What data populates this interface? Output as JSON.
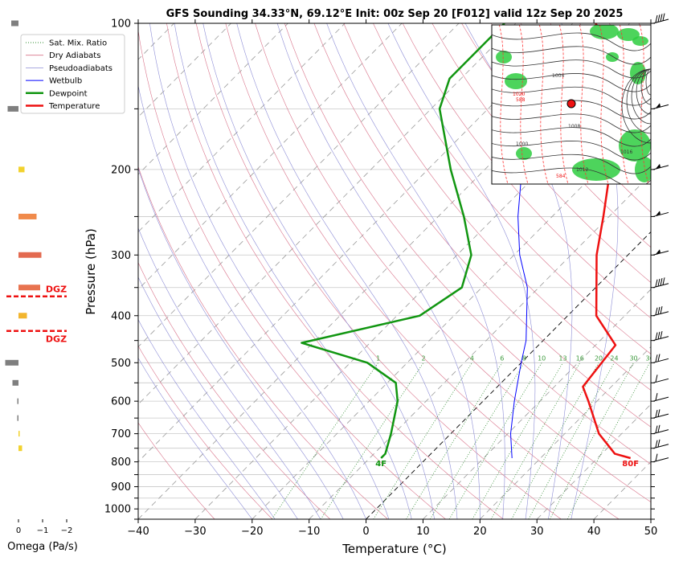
{
  "chart_data": {
    "type": "line",
    "title": "GFS Sounding 34.33°N, 69.12°E Init: 00z Sep 20 [F012] valid 12z Sep 20 2025",
    "xlabel": "Temperature (°C)",
    "ylabel": "Pressure (hPa)",
    "xlim": [
      -40,
      50
    ],
    "ylim": [
      1050,
      100
    ],
    "y_scale": "log",
    "x_ticks": [
      -40,
      -30,
      -20,
      -10,
      0,
      10,
      20,
      30,
      40,
      50
    ],
    "y_tick_labels": [
      100,
      200,
      300,
      400,
      500,
      600,
      700,
      800,
      900,
      1000
    ],
    "skew": true,
    "grid": true,
    "legend_position": "top-left",
    "legend": [
      {
        "label": "Sat. Mix. Ratio",
        "color": "#2e8b2e",
        "style": "dotted",
        "width": 1
      },
      {
        "label": "Dry Adiabats",
        "color": "#d9738a",
        "style": "solid",
        "width": 0.8
      },
      {
        "label": "Pseudoadiabats",
        "color": "#8d8dd6",
        "style": "solid",
        "width": 0.8
      },
      {
        "label": "Wetbulb",
        "color": "#0000ff",
        "style": "solid",
        "width": 1
      },
      {
        "label": "Dewpoint",
        "color": "#119611",
        "style": "solid",
        "width": 2.5
      },
      {
        "label": "Temperature",
        "color": "#ee1111",
        "style": "solid",
        "width": 2.5
      }
    ],
    "series": [
      {
        "name": "Temperature",
        "color": "#ee1111",
        "points": [
          [
            786,
            35.8
          ],
          [
            770,
            32.3
          ],
          [
            700,
            26.0
          ],
          [
            600,
            18.5
          ],
          [
            560,
            15.0
          ],
          [
            460,
            13.5
          ],
          [
            400,
            5.0
          ],
          [
            300,
            -5.5
          ],
          [
            250,
            -11.0
          ],
          [
            200,
            -18.0
          ],
          [
            150,
            -27.0
          ],
          [
            130,
            -30.0
          ],
          [
            100,
            -46.0
          ]
        ]
      },
      {
        "name": "Dewpoint",
        "color": "#119611",
        "points": [
          [
            786,
            -8.0
          ],
          [
            770,
            -8.0
          ],
          [
            700,
            -10.5
          ],
          [
            600,
            -15.0
          ],
          [
            550,
            -18.5
          ],
          [
            500,
            -27.0
          ],
          [
            455,
            -42.0
          ],
          [
            400,
            -26.0
          ],
          [
            350,
            -23.5
          ],
          [
            300,
            -27.5
          ],
          [
            250,
            -35.5
          ],
          [
            200,
            -46.0
          ],
          [
            150,
            -58.5
          ],
          [
            130,
            -62.0
          ],
          [
            100,
            -62.0
          ]
        ]
      },
      {
        "name": "Wetbulb",
        "color": "#0000ff",
        "points": [
          [
            786,
            15.0
          ],
          [
            700,
            10.5
          ],
          [
            600,
            5.5
          ],
          [
            500,
            0.0
          ],
          [
            450,
            -3.0
          ],
          [
            350,
            -12.0
          ],
          [
            300,
            -19.0
          ],
          [
            250,
            -26.0
          ],
          [
            200,
            -33.5
          ],
          [
            150,
            -40.0
          ]
        ]
      }
    ],
    "mixing_ratio_labels": [
      "1",
      "2",
      "4",
      "6",
      "8",
      "10",
      "13",
      "16",
      "20",
      "24",
      "30",
      "36"
    ],
    "surface_temp_label": "80F",
    "surface_dewpoint_label": "4F",
    "omega": {
      "xlabel": "Omega (Pa/s)",
      "x_ticks": [
        "0",
        "−1",
        "−2"
      ],
      "xlim": [
        0.5,
        -2.5
      ],
      "bars": [
        {
          "p": 100,
          "value": 0.3,
          "color": "#7f7f7f"
        },
        {
          "p": 150,
          "value": 0.45,
          "color": "#7f7f7f"
        },
        {
          "p": 200,
          "value": -0.25,
          "color": "#f2d22e"
        },
        {
          "p": 250,
          "value": -0.75,
          "color": "#f08a4b"
        },
        {
          "p": 300,
          "value": -0.95,
          "color": "#e36a50"
        },
        {
          "p": 350,
          "value": -0.9,
          "color": "#e8734f"
        },
        {
          "p": 400,
          "value": -0.35,
          "color": "#f2b52e"
        },
        {
          "p": 500,
          "value": 0.55,
          "color": "#7f7f7f"
        },
        {
          "p": 550,
          "value": 0.25,
          "color": "#7f7f7f"
        },
        {
          "p": 600,
          "value": 0.05,
          "color": "#7f7f7f"
        },
        {
          "p": 650,
          "value": 0.05,
          "color": "#7f7f7f"
        },
        {
          "p": 700,
          "value": -0.05,
          "color": "#f2d22e"
        },
        {
          "p": 750,
          "value": -0.15,
          "color": "#f2d22e"
        }
      ],
      "dgz_label": "DGZ",
      "dgz_levels": [
        365,
        430
      ]
    },
    "wind_barbs": [
      {
        "p": 100,
        "type": "barbs",
        "count": 4
      },
      {
        "p": 150,
        "type": "pennant",
        "count": 1
      },
      {
        "p": 200,
        "type": "pennant",
        "count": 1
      },
      {
        "p": 250,
        "type": "pennant",
        "count": 1
      },
      {
        "p": 300,
        "type": "pennant",
        "count": 1
      },
      {
        "p": 350,
        "type": "barbs",
        "count": 4
      },
      {
        "p": 400,
        "type": "barbs",
        "count": 3
      },
      {
        "p": 450,
        "type": "barbs",
        "count": 3
      },
      {
        "p": 500,
        "type": "barbs",
        "count": 2
      },
      {
        "p": 550,
        "type": "barbs",
        "count": 1
      },
      {
        "p": 600,
        "type": "barbs",
        "count": 1
      },
      {
        "p": 650,
        "type": "barbs",
        "count": 2
      },
      {
        "p": 700,
        "type": "barbs",
        "count": 2
      },
      {
        "p": 750,
        "type": "barbs",
        "count": 2
      },
      {
        "p": 800,
        "type": "barbs",
        "count": 1
      }
    ],
    "inset_map": {
      "point_label": "",
      "labels": [
        "1000",
        "1004",
        "1008",
        "1012",
        "1016",
        "1020",
        "588",
        "584"
      ]
    }
  }
}
